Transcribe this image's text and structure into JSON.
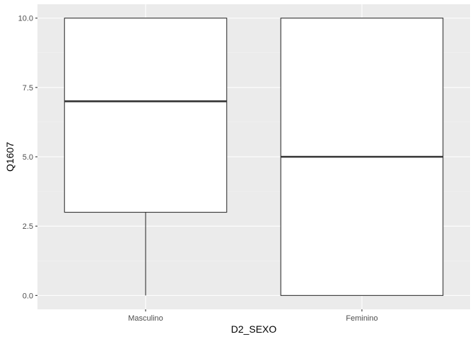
{
  "chart_data": {
    "type": "boxplot",
    "xlabel": "D2_SEXO",
    "ylabel": "Q1607",
    "categories": [
      "Masculino",
      "Feminino"
    ],
    "boxes": [
      {
        "category": "Masculino",
        "min": 0,
        "q1": 3,
        "median": 7,
        "q3": 10,
        "max": 10
      },
      {
        "category": "Feminino",
        "min": 0,
        "q1": 0,
        "median": 5,
        "q3": 10,
        "max": 10
      }
    ],
    "ylim": [
      -0.5,
      10.5
    ],
    "yticks": [
      0,
      2.5,
      5,
      7.5,
      10
    ],
    "ytick_labels": [
      "0.0",
      "2.5",
      "5.0",
      "7.5",
      "10.0"
    ],
    "grid": true,
    "colors": {
      "panel_background": "#ebebeb",
      "grid_major": "#ffffff",
      "grid_minor": "#f5f5f5",
      "box_fill": "#ffffff",
      "box_stroke": "#333333",
      "tick_text": "#4d4d4d"
    }
  }
}
